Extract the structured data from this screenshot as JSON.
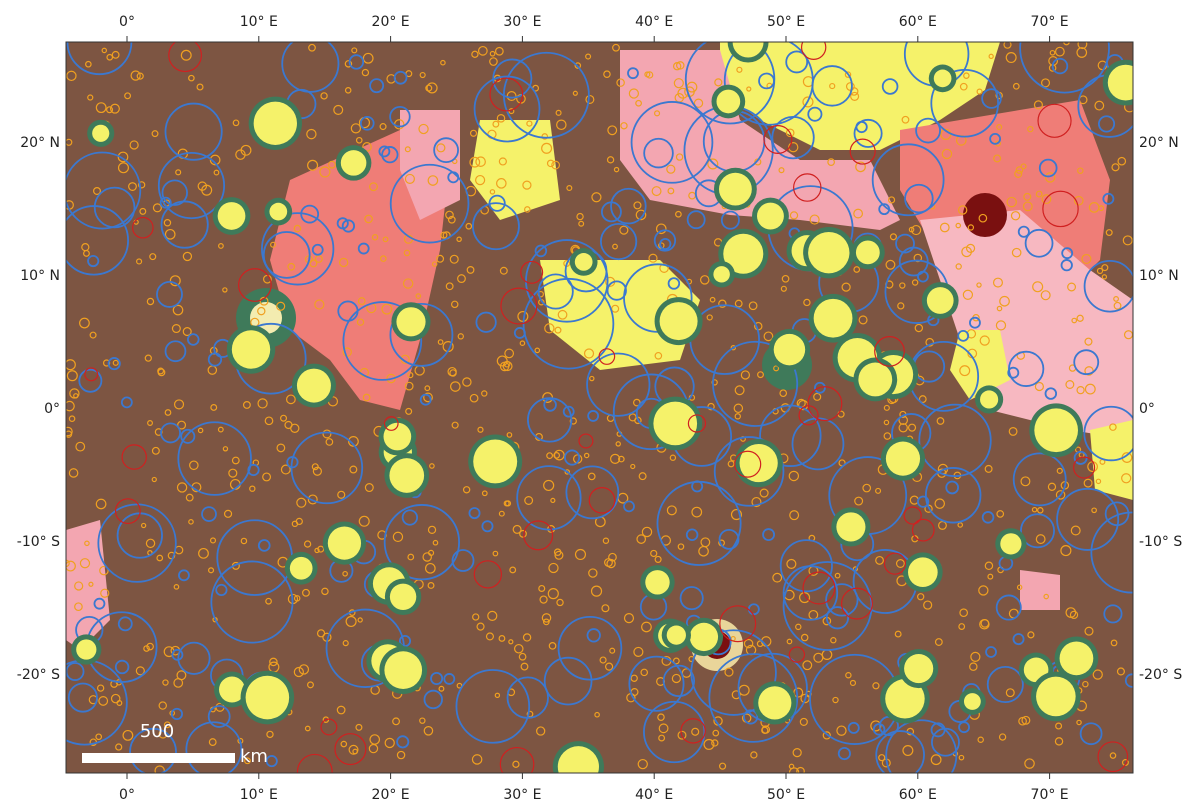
{
  "map": {
    "top_labels": [
      "0°",
      "10° E",
      "20° E",
      "30° E",
      "40° E",
      "50° E",
      "60° E",
      "70° E"
    ],
    "side_labels": [
      "20° N",
      "10° N",
      "0°",
      "-10° S",
      "-20° S"
    ],
    "scale_bar": {
      "value": "500",
      "unit": "km"
    }
  }
}
